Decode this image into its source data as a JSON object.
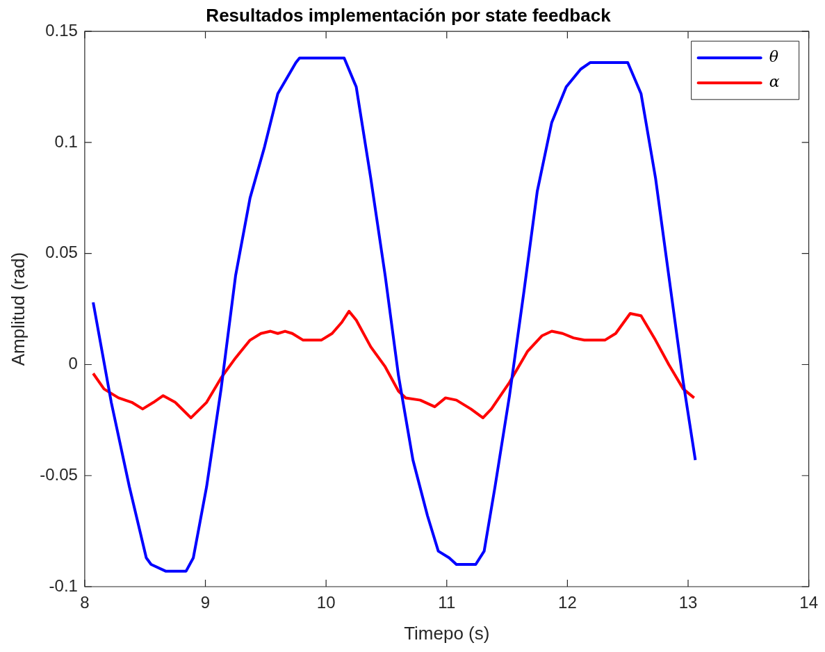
{
  "chart_data": {
    "type": "line",
    "title": "Resultados implementación por state feedback",
    "xlabel": "Timepo (s)",
    "ylabel": "Amplitud (rad)",
    "xlim": [
      8,
      14
    ],
    "xticks": [
      8,
      9,
      10,
      11,
      12,
      13,
      14
    ],
    "ylim": [
      -0.1,
      0.15
    ],
    "yticks": [
      -0.1,
      -0.05,
      0,
      0.05,
      0.1,
      0.15
    ],
    "grid": false,
    "legend": "top right",
    "marker": "none",
    "line_style": "solid",
    "series": [
      {
        "name": "θ",
        "color": "#0000ff",
        "x": [
          8.07,
          8.22,
          8.37,
          8.51,
          8.55,
          8.67,
          8.84,
          8.9,
          9.01,
          9.13,
          9.25,
          9.37,
          9.49,
          9.6,
          9.75,
          9.78,
          10.15,
          10.25,
          10.37,
          10.49,
          10.6,
          10.72,
          10.84,
          10.93,
          11.02,
          11.08,
          11.24,
          11.31,
          11.4,
          11.52,
          11.64,
          11.75,
          11.87,
          11.99,
          12.11,
          12.19,
          12.5,
          12.61,
          12.73,
          12.84,
          12.96,
          13.06
        ],
        "values": [
          0.028,
          -0.017,
          -0.055,
          -0.087,
          -0.09,
          -0.093,
          -0.093,
          -0.087,
          -0.055,
          -0.011,
          0.04,
          0.075,
          0.098,
          0.122,
          0.136,
          0.138,
          0.138,
          0.125,
          0.084,
          0.04,
          -0.005,
          -0.043,
          -0.068,
          -0.084,
          -0.087,
          -0.09,
          -0.09,
          -0.084,
          -0.055,
          -0.014,
          0.033,
          0.078,
          0.109,
          0.125,
          0.133,
          0.136,
          0.136,
          0.122,
          0.084,
          0.04,
          -0.008,
          -0.043
        ]
      },
      {
        "name": "α",
        "color": "#ff0000",
        "x": [
          8.07,
          8.16,
          8.28,
          8.39,
          8.48,
          8.57,
          8.65,
          8.75,
          8.88,
          9.01,
          9.13,
          9.25,
          9.37,
          9.46,
          9.54,
          9.6,
          9.66,
          9.72,
          9.81,
          9.96,
          10.05,
          10.13,
          10.19,
          10.25,
          10.37,
          10.49,
          10.6,
          10.66,
          10.78,
          10.9,
          10.99,
          11.08,
          11.2,
          11.3,
          11.37,
          11.52,
          11.67,
          11.79,
          11.87,
          11.96,
          12.05,
          12.14,
          12.31,
          12.4,
          12.52,
          12.61,
          12.73,
          12.84,
          12.96,
          13.05
        ],
        "values": [
          -0.004,
          -0.011,
          -0.015,
          -0.017,
          -0.02,
          -0.017,
          -0.014,
          -0.017,
          -0.024,
          -0.017,
          -0.006,
          0.003,
          0.011,
          0.014,
          0.015,
          0.014,
          0.015,
          0.014,
          0.011,
          0.011,
          0.014,
          0.019,
          0.024,
          0.02,
          0.008,
          -0.001,
          -0.012,
          -0.015,
          -0.016,
          -0.019,
          -0.015,
          -0.016,
          -0.02,
          -0.024,
          -0.02,
          -0.008,
          0.006,
          0.013,
          0.015,
          0.014,
          0.012,
          0.011,
          0.011,
          0.014,
          0.023,
          0.022,
          0.011,
          0,
          -0.011,
          -0.015
        ]
      }
    ]
  }
}
